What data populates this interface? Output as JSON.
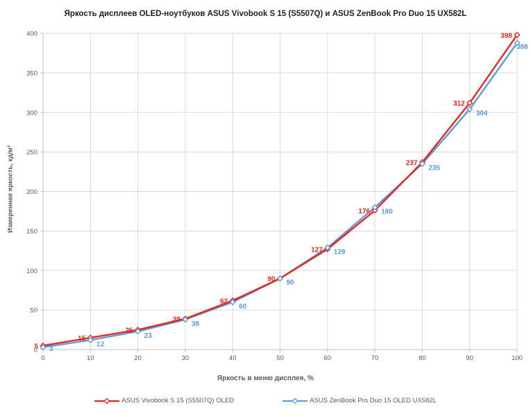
{
  "chart_data": {
    "type": "line",
    "title": "Яркость дисплеев OLED-ноутбуков ASUS Vivobook S 15 (S5507Q) и ASUS ZenBook Pro Duo 15 UX582L",
    "xlabel": "Яркость в меню дисплея, %",
    "ylabel": "Измеренная яркость, кд/м²",
    "x": [
      0,
      10,
      20,
      30,
      40,
      50,
      60,
      70,
      80,
      90,
      100
    ],
    "xticks": [
      0,
      10,
      20,
      30,
      40,
      50,
      60,
      70,
      80,
      90,
      100
    ],
    "yticks": [
      0,
      50,
      100,
      150,
      200,
      250,
      300,
      350,
      400
    ],
    "xlim": [
      0,
      100
    ],
    "ylim": [
      0,
      400
    ],
    "grid": true,
    "legend_position": "bottom",
    "marker": "open-diamond",
    "series": [
      {
        "name": "ASUS Vivobook S 15 (S5507Q) OLED",
        "color": "#e8251f",
        "values": [
          5,
          15,
          25,
          39,
          62,
          90,
          127,
          176,
          237,
          312,
          398
        ],
        "label_placement": "left"
      },
      {
        "name": "ASUS ZenBook Pro Duo 15 OLED UX582L",
        "color": "#5b9bd5",
        "values": [
          3,
          12,
          23,
          38,
          60,
          90,
          129,
          180,
          235,
          304,
          388
        ],
        "label_placement": "right-below"
      }
    ],
    "colors": {
      "gridline": "#d9d9d9",
      "axis": "#bfbfbf",
      "tick_label": "#595959",
      "title": "#1f1f1f",
      "axis_title": "#595959",
      "legend_text": "#595959"
    }
  }
}
